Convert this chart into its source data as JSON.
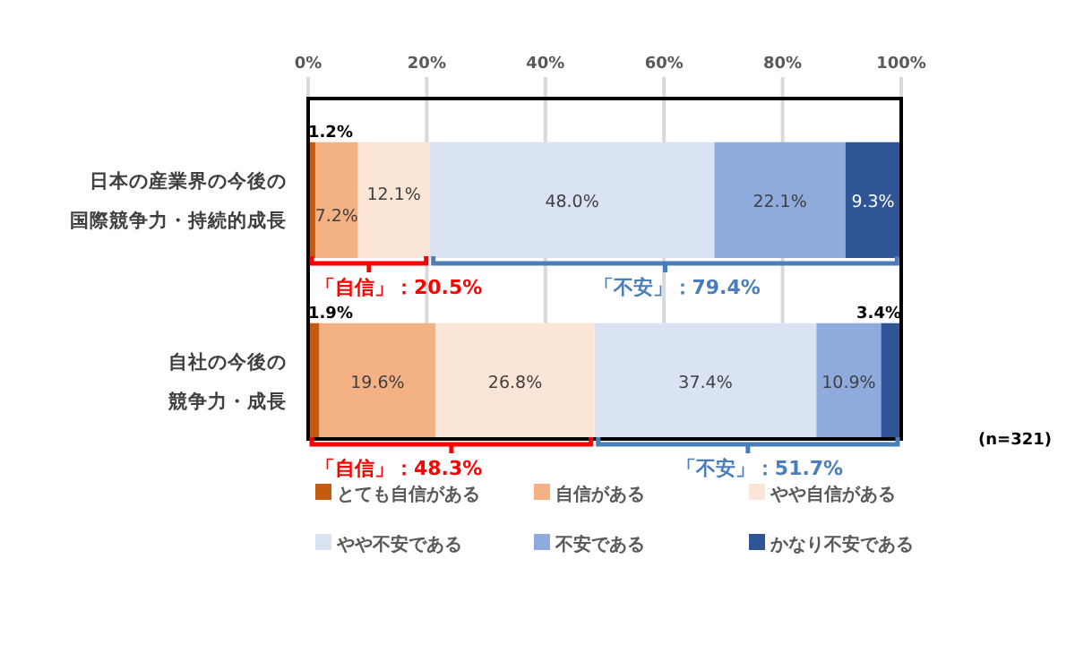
{
  "chart_data": {
    "type": "bar",
    "orientation": "horizontal",
    "stacked": true,
    "grid": "x",
    "legend": "bottom",
    "categories": [
      "日本の産業界の今後の国際競争力・持続的成長",
      "自社の今後の競争力・成長"
    ],
    "xlim": [
      0,
      100
    ],
    "xticks": [
      {
        "value": 0,
        "label": "0%"
      },
      {
        "value": 20,
        "label": "20%"
      },
      {
        "value": 40,
        "label": "40%"
      },
      {
        "value": 60,
        "label": "60%"
      },
      {
        "value": 80,
        "label": "80%"
      },
      {
        "value": 100,
        "label": "100%"
      }
    ],
    "series": [
      {
        "name": "とても自信がある",
        "color": "#c55a11",
        "values": [
          1.2,
          1.9
        ],
        "value_labels": [
          "1.2%",
          "1.9%"
        ]
      },
      {
        "name": "自信がある",
        "color": "#f4b183",
        "values": [
          7.2,
          19.6
        ],
        "value_labels": [
          "7.2%",
          "19.6%"
        ]
      },
      {
        "name": "やや自信がある",
        "color": "#fbe5d6",
        "values": [
          12.1,
          26.8
        ],
        "value_labels": [
          "12.1%",
          "26.8%"
        ]
      },
      {
        "name": "やや不安である",
        "color": "#dae3f3",
        "values": [
          48.0,
          37.4
        ],
        "value_labels": [
          "48.0%",
          "37.4%"
        ]
      },
      {
        "name": "不安である",
        "color": "#8faadc",
        "values": [
          22.1,
          10.9
        ],
        "value_labels": [
          "22.1%",
          "10.9%"
        ]
      },
      {
        "name": "かなり不安である",
        "color": "#2f5597",
        "values": [
          9.3,
          3.4
        ],
        "value_labels": [
          "9.3%",
          "3.4%"
        ]
      }
    ],
    "annotations": [
      "「自信」：20.5%",
      "「不安」：79.4%",
      "「自信」：48.3%",
      "「不安」：51.7%",
      "(n=321)"
    ]
  }
}
